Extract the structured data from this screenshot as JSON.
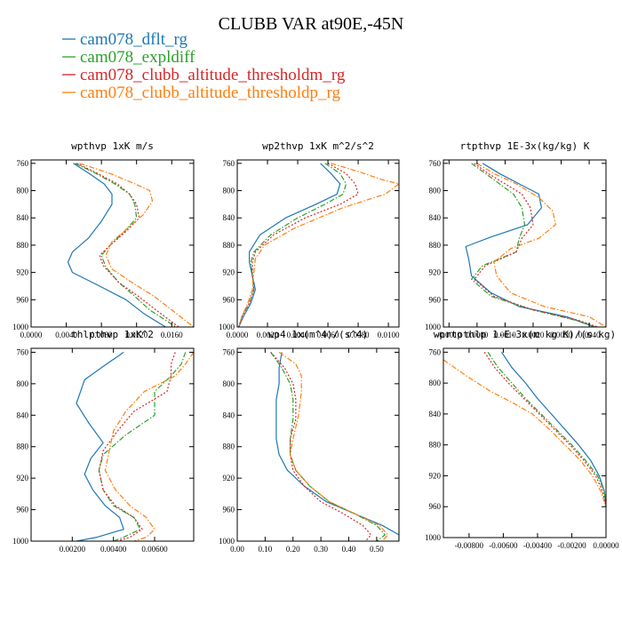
{
  "figure": {
    "title": "CLUBB VAR at90E,-45N",
    "legend": [
      {
        "label": "cam078_dflt_rg",
        "color": "#1f77b4",
        "dash": "solid"
      },
      {
        "label": "cam078_expldiff",
        "color": "#2ca02c",
        "dash": "dashdot"
      },
      {
        "label": "cam078_clubb_altitude_thresholdm_rg",
        "color": "#d62728",
        "dash": "dotted"
      },
      {
        "label": "cam078_clubb_altitude_thresholdp_rg",
        "color": "#ff7f0e",
        "dash": "dashdot"
      }
    ]
  },
  "chart_data": [
    {
      "type": "line",
      "title": "wpthvp  1xK m/s",
      "xlim": [
        0,
        0.0185
      ],
      "ylim": [
        1000,
        755
      ],
      "xticks": [
        "0.0000",
        "0.0040",
        "0.0080",
        "0.0120",
        "0.0160"
      ],
      "xtick_values": [
        0,
        0.004,
        0.008,
        0.012,
        0.016
      ],
      "yticks": [
        "760",
        "800",
        "840",
        "880",
        "920",
        "960",
        "1000"
      ],
      "ytick_values": [
        760,
        800,
        840,
        880,
        920,
        960,
        1000
      ],
      "series": [
        {
          "name": "cam078_dflt_rg",
          "x": [
            0.0048,
            0.0066,
            0.0083,
            0.0092,
            0.0092,
            0.008,
            0.0065,
            0.0047,
            0.0042,
            0.0047,
            0.0078,
            0.0108,
            0.0128,
            0.0153
          ],
          "y": [
            760,
            775,
            790,
            805,
            820,
            845,
            870,
            890,
            905,
            920,
            940,
            960,
            980,
            1000
          ]
        },
        {
          "name": "cam078_expldiff",
          "x": [
            0.005,
            0.0074,
            0.0095,
            0.0112,
            0.0118,
            0.012,
            0.0106,
            0.009,
            0.008,
            0.0085,
            0.01,
            0.0118,
            0.0135,
            0.0165
          ],
          "y": [
            760,
            775,
            790,
            805,
            820,
            840,
            860,
            880,
            895,
            912,
            935,
            955,
            975,
            1000
          ]
        },
        {
          "name": "cam078_clubb_altitude_thresholdm_rg",
          "x": [
            0.0052,
            0.0076,
            0.0098,
            0.0112,
            0.012,
            0.0123,
            0.0108,
            0.009,
            0.0078,
            0.0082,
            0.01,
            0.0122,
            0.0142,
            0.0168
          ],
          "y": [
            760,
            775,
            790,
            805,
            820,
            840,
            860,
            880,
            895,
            910,
            935,
            955,
            975,
            1000
          ]
        },
        {
          "name": "cam078_clubb_altitude_thresholdp_rg",
          "x": [
            0.0055,
            0.009,
            0.0118,
            0.0135,
            0.0138,
            0.0128,
            0.011,
            0.0092,
            0.0085,
            0.0092,
            0.0115,
            0.014,
            0.016,
            0.0185
          ],
          "y": [
            760,
            775,
            790,
            800,
            815,
            835,
            855,
            875,
            895,
            915,
            935,
            955,
            975,
            1000
          ]
        }
      ]
    },
    {
      "type": "line",
      "title": "wp2thvp  1xK m^2/s^2",
      "xlim": [
        0,
        0.0107
      ],
      "ylim": [
        1000,
        755
      ],
      "xticks": [
        "0.0000",
        "0.0020",
        "0.0040",
        "0.0060",
        "0.0080",
        "0.0100"
      ],
      "xtick_values": [
        0,
        0.002,
        0.004,
        0.006,
        0.008,
        0.01
      ],
      "yticks": [
        "760",
        "800",
        "840",
        "880",
        "920",
        "960",
        "1000"
      ],
      "ytick_values": [
        760,
        800,
        840,
        880,
        920,
        960,
        1000
      ],
      "series": [
        {
          "name": "cam078_dflt_rg",
          "x": [
            0.0055,
            0.0062,
            0.0068,
            0.0066,
            0.0052,
            0.0032,
            0.0015,
            0.0008,
            0.0008,
            0.001,
            0.0012,
            0.0009,
            0.0004,
            0.0001
          ],
          "y": [
            760,
            775,
            790,
            805,
            820,
            840,
            865,
            890,
            905,
            925,
            945,
            965,
            985,
            1000
          ]
        },
        {
          "name": "cam078_expldiff",
          "x": [
            0.0058,
            0.0068,
            0.0072,
            0.007,
            0.0058,
            0.004,
            0.0022,
            0.0011,
            0.0009,
            0.001,
            0.0011,
            0.0008,
            0.0003,
            0.0001
          ],
          "y": [
            760,
            775,
            790,
            805,
            820,
            840,
            865,
            890,
            905,
            925,
            945,
            965,
            985,
            1000
          ]
        },
        {
          "name": "cam078_clubb_altitude_thresholdm_rg",
          "x": [
            0.006,
            0.0072,
            0.0078,
            0.008,
            0.0068,
            0.0045,
            0.0024,
            0.0012,
            0.001,
            0.001,
            0.0011,
            0.0008,
            0.0003,
            0.0001
          ],
          "y": [
            760,
            775,
            790,
            805,
            820,
            840,
            865,
            890,
            905,
            925,
            945,
            965,
            985,
            1000
          ]
        },
        {
          "name": "cam078_clubb_altitude_thresholdp_rg",
          "x": [
            0.0062,
            0.008,
            0.0096,
            0.0107,
            0.0098,
            0.007,
            0.0038,
            0.0018,
            0.0012,
            0.0011,
            0.001,
            0.0007,
            0.0003,
            0.0001
          ],
          "y": [
            760,
            772,
            784,
            790,
            805,
            825,
            855,
            880,
            900,
            920,
            945,
            965,
            985,
            1000
          ]
        }
      ]
    },
    {
      "type": "line",
      "title": "rtpthvp  1E-3x(kg/kg) K",
      "xlim": [
        -0.0012,
        0.0046
      ],
      "ylim": [
        1000,
        755
      ],
      "xticks": [
        "-0.0010",
        "0.0000",
        "0.0010",
        "0.0020",
        "0.0030",
        "0.0040"
      ],
      "xtick_values": [
        -0.001,
        0,
        0.001,
        0.002,
        0.003,
        0.004
      ],
      "yticks": [
        "760",
        "800",
        "840",
        "880",
        "920",
        "960",
        "1000"
      ],
      "ytick_values": [
        760,
        800,
        840,
        880,
        920,
        960,
        1000
      ],
      "series": [
        {
          "name": "cam078_dflt_rg",
          "x": [
            0.0002,
            0.0008,
            0.0015,
            0.0022,
            0.0023,
            0.0018,
            0.0005,
            -0.0004,
            -0.0003,
            -0.0002,
            0.0005,
            0.0015,
            0.0032,
            0.0042
          ],
          "y": [
            760,
            775,
            790,
            805,
            825,
            850,
            868,
            882,
            900,
            925,
            950,
            970,
            985,
            1000
          ]
        },
        {
          "name": "cam078_expldiff",
          "x": [
            -0.0002,
            0.0003,
            0.0008,
            0.0013,
            0.0016,
            0.0017,
            0.0015,
            0.0014,
            0.0002,
            -0.0002,
            0.0005,
            0.002,
            0.0035,
            0.0042
          ],
          "y": [
            760,
            775,
            790,
            805,
            825,
            850,
            870,
            890,
            910,
            930,
            955,
            975,
            990,
            1000
          ]
        },
        {
          "name": "cam078_clubb_altitude_thresholdm_rg",
          "x": [
            -0.0001,
            0.0004,
            0.001,
            0.0016,
            0.0019,
            0.002,
            0.0016,
            0.0014,
            0.0003,
            -0.0001,
            0.0006,
            0.002,
            0.0036,
            0.0043
          ],
          "y": [
            760,
            775,
            790,
            805,
            825,
            850,
            870,
            890,
            910,
            930,
            955,
            975,
            990,
            1000
          ]
        },
        {
          "name": "cam078_clubb_altitude_thresholdp_rg",
          "x": [
            0.0,
            0.0006,
            0.0014,
            0.0022,
            0.0027,
            0.0028,
            0.0022,
            0.0012,
            0.0006,
            0.0007,
            0.0012,
            0.0024,
            0.004,
            0.0046
          ],
          "y": [
            760,
            775,
            790,
            810,
            830,
            850,
            870,
            885,
            905,
            925,
            950,
            970,
            985,
            1000
          ]
        }
      ]
    },
    {
      "type": "line",
      "title": "thlpthvp  1xK^2",
      "xlim": [
        0,
        0.0079
      ],
      "ylim": [
        1000,
        755
      ],
      "xticks": [
        "0.00200",
        "0.00400",
        "0.00600"
      ],
      "xtick_values": [
        0.002,
        0.004,
        0.006
      ],
      "yticks": [
        "760",
        "800",
        "840",
        "880",
        "920",
        "960",
        "1000"
      ],
      "ytick_values": [
        760,
        800,
        840,
        880,
        920,
        960,
        1000
      ],
      "series": [
        {
          "name": "cam078_dflt_rg",
          "x": [
            0.0045,
            0.0035,
            0.0026,
            0.0022,
            0.0028,
            0.0035,
            0.0029,
            0.0026,
            0.003,
            0.0036,
            0.0043,
            0.0045,
            0.0032,
            0.0022
          ],
          "y": [
            760,
            778,
            795,
            825,
            850,
            875,
            895,
            915,
            935,
            955,
            970,
            985,
            995,
            1000
          ]
        },
        {
          "name": "cam078_expldiff",
          "x": [
            0.0075,
            0.0073,
            0.0068,
            0.006,
            0.006,
            0.0046,
            0.0035,
            0.0033,
            0.0035,
            0.004,
            0.005,
            0.0053,
            0.0045,
            0.004
          ],
          "y": [
            760,
            775,
            790,
            810,
            840,
            865,
            890,
            910,
            935,
            955,
            970,
            985,
            995,
            1000
          ]
        },
        {
          "name": "cam078_clubb_altitude_thresholdm_rg",
          "x": [
            0.007,
            0.0068,
            0.0068,
            0.0066,
            0.005,
            0.0042,
            0.0035,
            0.0033,
            0.0035,
            0.0041,
            0.005,
            0.0054,
            0.0048,
            0.0042
          ],
          "y": [
            760,
            775,
            790,
            810,
            835,
            860,
            885,
            910,
            935,
            955,
            970,
            985,
            995,
            1000
          ]
        },
        {
          "name": "cam078_clubb_altitude_thresholdp_rg",
          "x": [
            0.0079,
            0.0075,
            0.007,
            0.0055,
            0.0046,
            0.004,
            0.0038,
            0.0036,
            0.0041,
            0.0048,
            0.0056,
            0.006,
            0.0056,
            0.005
          ],
          "y": [
            760,
            775,
            790,
            810,
            835,
            860,
            885,
            910,
            935,
            955,
            970,
            985,
            995,
            1000
          ]
        }
      ]
    },
    {
      "type": "line",
      "title": "wp4  1x(m^4)/(s^4)",
      "xlim": [
        0,
        0.58
      ],
      "ylim": [
        1000,
        755
      ],
      "xticks": [
        "0.00",
        "0.10",
        "0.20",
        "0.30",
        "0.40",
        "0.50"
      ],
      "xtick_values": [
        0,
        0.1,
        0.2,
        0.3,
        0.4,
        0.5
      ],
      "yticks": [
        "760",
        "800",
        "840",
        "880",
        "920",
        "960",
        "1000"
      ],
      "ytick_values": [
        760,
        800,
        840,
        880,
        920,
        960,
        1000
      ],
      "series": [
        {
          "name": "cam078_dflt_rg",
          "x": [
            0.16,
            0.15,
            0.15,
            0.14,
            0.14,
            0.14,
            0.15,
            0.18,
            0.24,
            0.32,
            0.42,
            0.52,
            0.58,
            0.58
          ],
          "y": [
            760,
            780,
            800,
            820,
            845,
            870,
            890,
            910,
            930,
            950,
            965,
            980,
            992,
            1000
          ]
        },
        {
          "name": "cam078_expldiff",
          "x": [
            0.12,
            0.16,
            0.19,
            0.2,
            0.2,
            0.19,
            0.19,
            0.21,
            0.26,
            0.33,
            0.42,
            0.5,
            0.53,
            0.5
          ],
          "y": [
            760,
            780,
            800,
            820,
            845,
            870,
            890,
            910,
            930,
            950,
            965,
            980,
            992,
            1000
          ]
        },
        {
          "name": "cam078_clubb_altitude_thresholdm_rg",
          "x": [
            0.12,
            0.17,
            0.2,
            0.21,
            0.21,
            0.19,
            0.19,
            0.2,
            0.24,
            0.3,
            0.38,
            0.45,
            0.48,
            0.46
          ],
          "y": [
            760,
            780,
            800,
            820,
            845,
            870,
            890,
            910,
            930,
            950,
            965,
            980,
            992,
            1000
          ]
        },
        {
          "name": "cam078_clubb_altitude_thresholdp_rg",
          "x": [
            0.15,
            0.21,
            0.23,
            0.23,
            0.22,
            0.2,
            0.19,
            0.21,
            0.26,
            0.33,
            0.42,
            0.51,
            0.54,
            0.52
          ],
          "y": [
            760,
            775,
            790,
            810,
            840,
            870,
            890,
            910,
            930,
            950,
            965,
            980,
            992,
            1000
          ]
        }
      ]
    },
    {
      "type": "line",
      "title": "wprtpthlp  1-E-3x(m kg K)/(s kg)",
      "xlim": [
        -0.0095,
        0.0
      ],
      "ylim": [
        1000,
        755
      ],
      "xticks": [
        "-0.00800",
        "-0.00600",
        "-0.00400",
        "-0.00200",
        "0.00000"
      ],
      "xtick_values": [
        -0.008,
        -0.006,
        -0.004,
        -0.002,
        0
      ],
      "yticks": [
        "760",
        "800",
        "840",
        "880",
        "920",
        "960",
        "1000"
      ],
      "ytick_values": [
        760,
        800,
        840,
        880,
        920,
        960,
        1000
      ],
      "series": [
        {
          "name": "cam078_dflt_rg",
          "x": [
            -0.0061,
            -0.0055,
            -0.0047,
            -0.004,
            -0.0032,
            -0.0024,
            -0.0016,
            -0.0009,
            -0.0004,
            -0.0001,
            0.0
          ],
          "y": [
            760,
            780,
            800,
            820,
            840,
            860,
            880,
            900,
            920,
            940,
            960
          ]
        },
        {
          "name": "cam078_expldiff",
          "x": [
            -0.0069,
            -0.0063,
            -0.0055,
            -0.0047,
            -0.0038,
            -0.0029,
            -0.002,
            -0.0012,
            -0.0005,
            -0.0001,
            0.0
          ],
          "y": [
            760,
            780,
            800,
            820,
            840,
            860,
            880,
            900,
            920,
            940,
            960
          ]
        },
        {
          "name": "cam078_clubb_altitude_thresholdm_rg",
          "x": [
            -0.0071,
            -0.0065,
            -0.0057,
            -0.0048,
            -0.0039,
            -0.003,
            -0.0021,
            -0.0013,
            -0.0006,
            -0.0002,
            0.0
          ],
          "y": [
            760,
            780,
            800,
            820,
            840,
            860,
            880,
            900,
            920,
            940,
            960
          ]
        },
        {
          "name": "cam078_clubb_altitude_thresholdp_rg",
          "x": [
            -0.0095,
            -0.0082,
            -0.0068,
            -0.0055,
            -0.0043,
            -0.0033,
            -0.0024,
            -0.0015,
            -0.0008,
            -0.0003,
            0.0
          ],
          "y": [
            770,
            790,
            810,
            825,
            840,
            860,
            880,
            900,
            920,
            940,
            960
          ]
        }
      ]
    }
  ]
}
